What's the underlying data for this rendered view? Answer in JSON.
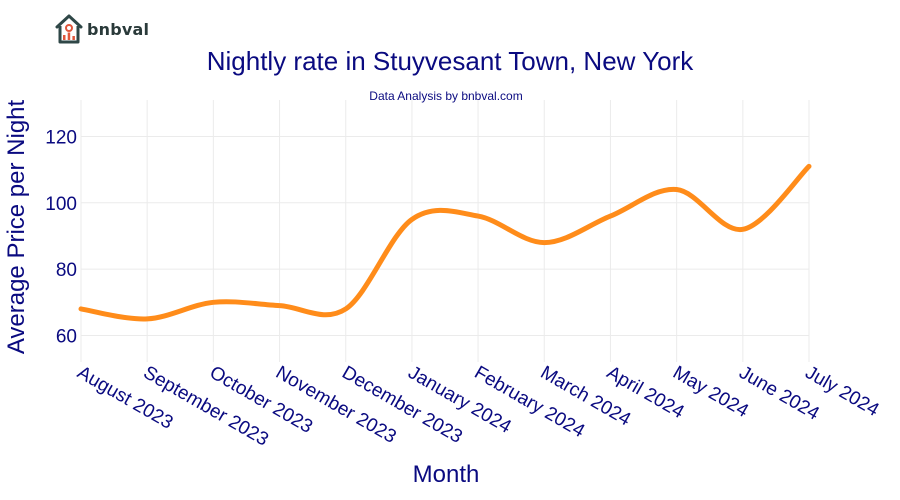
{
  "brand": {
    "name": "bnbval"
  },
  "colors": {
    "line": "#ff8c1a",
    "text": "#0a0a80",
    "grid": "#ebebeb",
    "logo": "#2f4747",
    "logo_accent": "#e0563b"
  },
  "chart_data": {
    "type": "line",
    "title": "Nightly rate in Stuyvesant Town, New York",
    "subtitle": "Data Analysis by bnbval.com",
    "xlabel": "Month",
    "ylabel": "Average Price per Night",
    "categories": [
      "August 2023",
      "September 2023",
      "October 2023",
      "November 2023",
      "December 2023",
      "January 2024",
      "February 2024",
      "March 2024",
      "April 2024",
      "May 2024",
      "June 2024",
      "July 2024"
    ],
    "series": [
      {
        "values": [
          68,
          65,
          70,
          69,
          68,
          95,
          96,
          88,
          96,
          104,
          92,
          111
        ]
      }
    ],
    "ylim": [
      52,
      131
    ],
    "yticks": [
      60,
      80,
      100,
      120
    ],
    "grid": true,
    "smooth": true
  }
}
